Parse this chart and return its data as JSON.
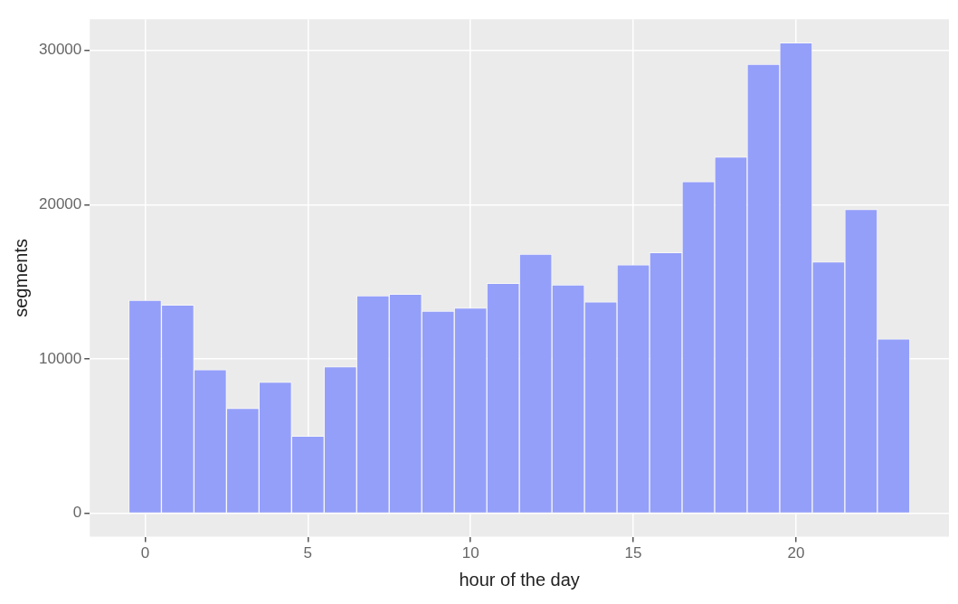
{
  "chart_data": {
    "type": "histogram",
    "xlabel": "hour of the day",
    "ylabel": "segments",
    "bins": [
      -0.5,
      0.5,
      1.5,
      2.5,
      3.5,
      4.5,
      5.5,
      6.5,
      7.5,
      8.5,
      9.5,
      10.5,
      11.5,
      12.5,
      13.5,
      14.5,
      15.5,
      16.5,
      17.5,
      18.5,
      19.5,
      20.5,
      21.5,
      22.5,
      23.5
    ],
    "values": [
      13800,
      13500,
      9300,
      6800,
      8500,
      5000,
      9500,
      14100,
      14200,
      13100,
      13300,
      14900,
      16800,
      14800,
      13700,
      16100,
      16900,
      21500,
      23100,
      29100,
      30500,
      16300,
      19700,
      11300
    ],
    "color": "#949ffa",
    "xlim": [
      -1.7,
      24.7
    ],
    "xticks": [
      0,
      5,
      10,
      15,
      20
    ],
    "ylim": [
      -1525,
      32025
    ],
    "yticks": [
      0,
      10000,
      20000,
      30000
    ],
    "grid": true
  }
}
